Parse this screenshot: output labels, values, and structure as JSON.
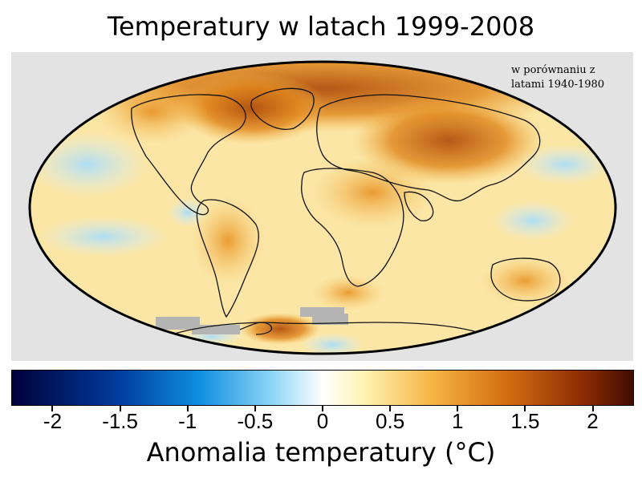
{
  "title": "Temperatury w latach 1999-2008",
  "note_line1": "w porównaniu z",
  "note_line2": "latami 1940-1980",
  "colorbar": {
    "label": "Anomalia temperatury (°C)",
    "ticks": [
      "-2",
      "-1.5",
      "-1",
      "-0.5",
      "0",
      "0.5",
      "1",
      "1.5",
      "2"
    ],
    "range": [
      -2.3,
      2.3
    ]
  },
  "colors": {
    "frame_background": "#e3e3e3",
    "map_base": "#fbe6a6",
    "warm_strong": "#a9400c",
    "warm_mid": "#e8911f",
    "cool": "#bfe6f8",
    "no_data": "#b4b4b4"
  }
}
